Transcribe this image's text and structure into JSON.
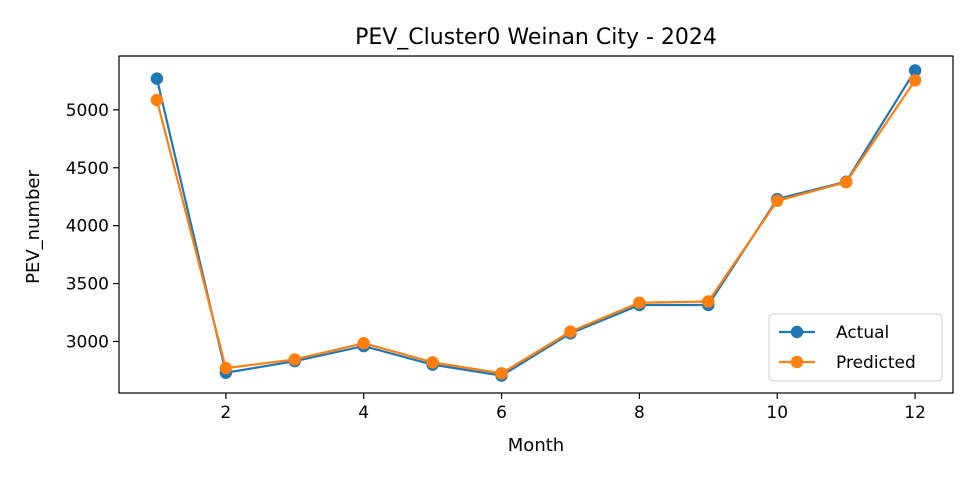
{
  "chart_data": {
    "type": "line",
    "title": "PEV_Cluster0 Weinan City - 2024",
    "xlabel": "Month",
    "ylabel": "PEV_number",
    "x": [
      1,
      2,
      3,
      4,
      5,
      6,
      7,
      8,
      9,
      10,
      11,
      12
    ],
    "xlim": [
      0.45,
      12.55
    ],
    "ylim": [
      2555,
      5465
    ],
    "xticks": [
      2,
      4,
      6,
      8,
      10,
      12
    ],
    "yticks": [
      3000,
      3500,
      4000,
      4500,
      5000
    ],
    "grid": false,
    "legend_position": "lower right",
    "series": [
      {
        "name": "Actual",
        "color": "#1f77b4",
        "values": [
          5270,
          2730,
          2830,
          2960,
          2800,
          2705,
          3070,
          3315,
          3315,
          4230,
          4380,
          5340
        ]
      },
      {
        "name": "Predicted",
        "color": "#ff7f0e",
        "values": [
          5085,
          2770,
          2845,
          2985,
          2820,
          2725,
          3085,
          3335,
          3345,
          4215,
          4375,
          5255
        ]
      }
    ]
  }
}
